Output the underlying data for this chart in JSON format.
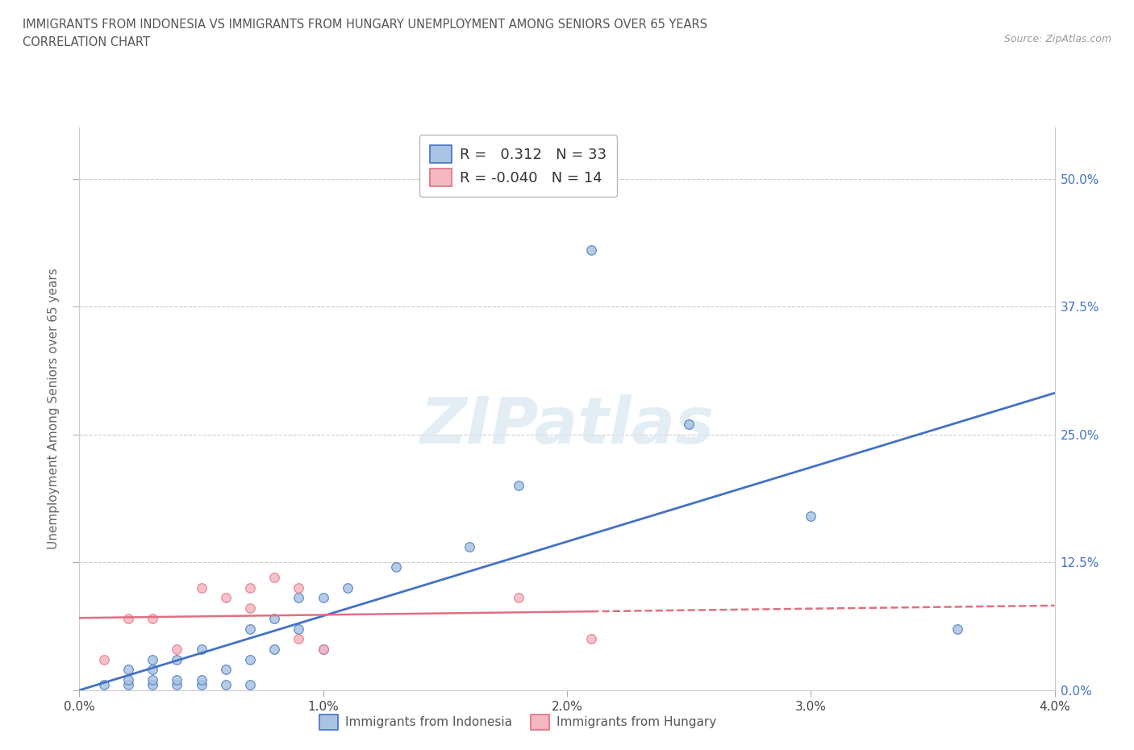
{
  "title_line1": "IMMIGRANTS FROM INDONESIA VS IMMIGRANTS FROM HUNGARY UNEMPLOYMENT AMONG SENIORS OVER 65 YEARS",
  "title_line2": "CORRELATION CHART",
  "source_text": "Source: ZipAtlas.com",
  "ylabel": "Unemployment Among Seniors over 65 years",
  "xlim": [
    0.0,
    0.04
  ],
  "ylim": [
    0.0,
    0.55
  ],
  "ytick_labels_right": [
    "0.0%",
    "12.5%",
    "25.0%",
    "37.5%",
    "50.0%"
  ],
  "ytick_values": [
    0.0,
    0.125,
    0.25,
    0.375,
    0.5
  ],
  "xtick_labels": [
    "0.0%",
    "1.0%",
    "2.0%",
    "3.0%",
    "4.0%"
  ],
  "xtick_values": [
    0.0,
    0.01,
    0.02,
    0.03,
    0.04
  ],
  "indonesia_R": 0.312,
  "indonesia_N": 33,
  "hungary_R": -0.04,
  "hungary_N": 14,
  "indonesia_color": "#a8c4e0",
  "hungary_color": "#f4b8c1",
  "indonesia_line_color": "#4472c4",
  "hungary_line_color": "#e07080",
  "watermark_text": "ZIPatlas",
  "indonesia_points_x": [
    0.001,
    0.002,
    0.002,
    0.002,
    0.003,
    0.003,
    0.003,
    0.003,
    0.004,
    0.004,
    0.004,
    0.005,
    0.005,
    0.005,
    0.006,
    0.006,
    0.007,
    0.007,
    0.007,
    0.008,
    0.008,
    0.009,
    0.009,
    0.01,
    0.01,
    0.011,
    0.013,
    0.016,
    0.018,
    0.021,
    0.025,
    0.03,
    0.036
  ],
  "indonesia_points_y": [
    0.005,
    0.005,
    0.01,
    0.02,
    0.005,
    0.01,
    0.02,
    0.03,
    0.005,
    0.01,
    0.03,
    0.005,
    0.01,
    0.04,
    0.005,
    0.02,
    0.005,
    0.03,
    0.06,
    0.04,
    0.07,
    0.06,
    0.09,
    0.04,
    0.09,
    0.1,
    0.12,
    0.14,
    0.2,
    0.43,
    0.26,
    0.17,
    0.06
  ],
  "hungary_points_x": [
    0.001,
    0.002,
    0.003,
    0.004,
    0.005,
    0.006,
    0.007,
    0.007,
    0.008,
    0.009,
    0.009,
    0.01,
    0.018,
    0.021
  ],
  "hungary_points_y": [
    0.03,
    0.07,
    0.07,
    0.04,
    0.1,
    0.09,
    0.1,
    0.08,
    0.11,
    0.05,
    0.1,
    0.04,
    0.09,
    0.05
  ]
}
